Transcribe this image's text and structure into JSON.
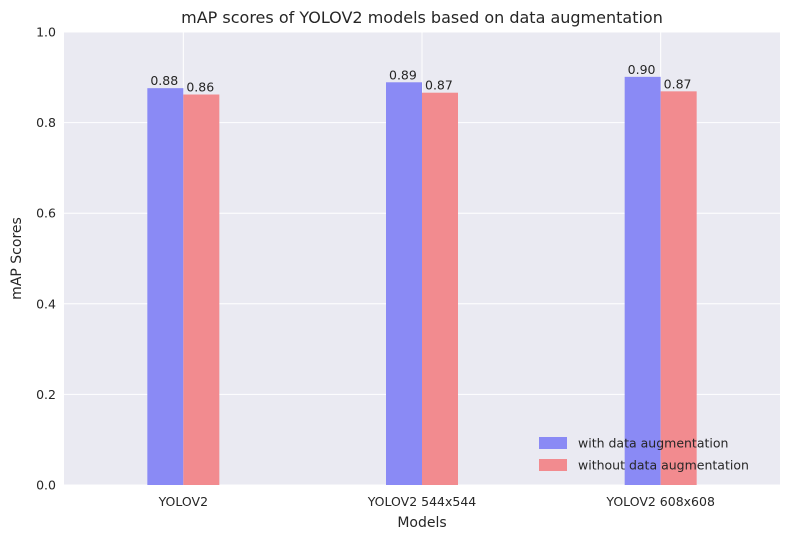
{
  "chart_data": {
    "type": "bar",
    "title": "mAP scores of YOLOV2 models based on data augmentation",
    "xlabel": "Models",
    "ylabel": "mAP Scores",
    "categories": [
      "YOLOV2",
      "YOLOV2 544x544",
      "YOLOV2 608x608"
    ],
    "series": [
      {
        "name": "with data augmentation",
        "values": [
          0.876,
          0.889,
          0.901
        ],
        "labels": [
          "0.88",
          "0.89",
          "0.90"
        ],
        "color": "#8a8af5"
      },
      {
        "name": "without data augmentation",
        "values": [
          0.862,
          0.866,
          0.869
        ],
        "labels": [
          "0.86",
          "0.87",
          "0.87"
        ],
        "color": "#f28b8f"
      }
    ],
    "ylim": [
      0,
      1
    ],
    "yticks": [
      "0.0",
      "0.2",
      "0.4",
      "0.6",
      "0.8",
      "1.0"
    ],
    "grid": true,
    "legend_position": "lower-right",
    "background": "#eaeaf2"
  }
}
